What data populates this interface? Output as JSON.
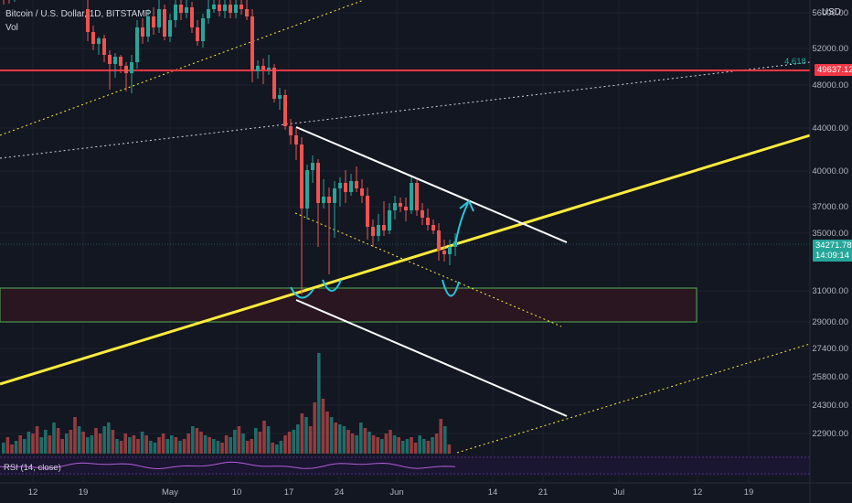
{
  "legend": {
    "symbol": "Bitcoin / U.S. Dollar, 1D, BITSTAMP",
    "vol": "Vol"
  },
  "currency": "USD",
  "current_price": "34271.78",
  "countdown": "14:09:14",
  "hline_price": "49637.12",
  "fib_label": "4.618",
  "rsi_label": "RSI (14, close)",
  "price_ticks": [
    "56000.00",
    "52000.00",
    "48000.00",
    "44000.00",
    "40000.00",
    "37000.00",
    "35000.00",
    "31000.00",
    "29000.00",
    "27400.00",
    "25800.00",
    "24300.00",
    "22900.00"
  ],
  "time_ticks": [
    "12",
    "19",
    "May",
    "10",
    "17",
    "24",
    "Jun",
    "14",
    "21",
    "Jul",
    "12",
    "19"
  ],
  "colors": {
    "background": "#131722",
    "up": "#26a69a",
    "down": "#ef5350",
    "horizontal_line": "#f23645",
    "trendline": "#ffeb3b",
    "channel": "#ffffff",
    "zone_border": "#4caf50",
    "zone_fill": "#2a1620",
    "annotation": "#26c6da",
    "current_price_tag": "#26a69a"
  }
}
